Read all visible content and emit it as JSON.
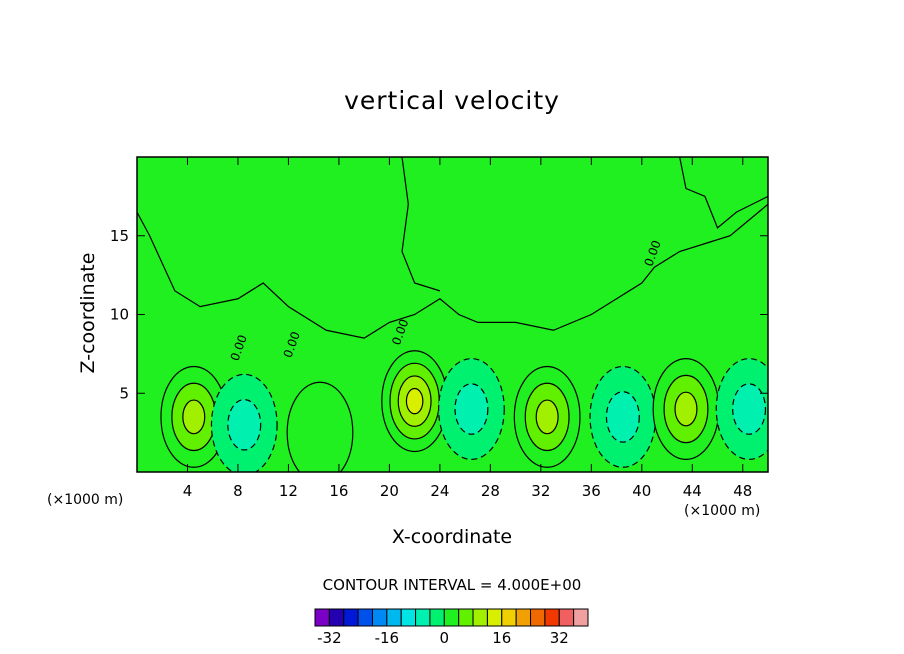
{
  "chart_data": {
    "type": "heatmap",
    "title": "vertical velocity",
    "xlabel": "X-coordinate",
    "ylabel": "Z-coordinate",
    "x_unit_label": "(×1000 m)",
    "xlim": [
      0,
      50
    ],
    "ylim": [
      0,
      20
    ],
    "x_ticks": [
      "4",
      "8",
      "12",
      "16",
      "20",
      "24",
      "28",
      "32",
      "36",
      "40",
      "44",
      "48"
    ],
    "y_ticks": [
      "5",
      "10",
      "15"
    ],
    "contour_interval_text": "CONTOUR INTERVAL = 4.000E+00",
    "contour_interval": 4,
    "zero_contour_labels": [
      "0.00",
      "0.00",
      "0.00",
      "0.00"
    ],
    "colorbar": {
      "levels": [
        -36,
        -32,
        -28,
        -24,
        -20,
        -16,
        -12,
        -8,
        -4,
        0,
        4,
        8,
        12,
        16,
        20,
        24,
        28,
        32,
        36
      ],
      "tick_labels": [
        "-32",
        "-16",
        "0",
        "16",
        "32"
      ],
      "colors": [
        "#7a00c8",
        "#2400b0",
        "#0018d8",
        "#0050ec",
        "#0088f4",
        "#00b8f0",
        "#00e4e4",
        "#00f0b0",
        "#00f070",
        "#20f020",
        "#60f000",
        "#a0f000",
        "#d8f000",
        "#f0d000",
        "#f0a000",
        "#f06800",
        "#f03800",
        "#f06060",
        "#f0a0a0"
      ]
    },
    "features": [
      {
        "kind": "updraft",
        "x": 4.5,
        "z": 3.5,
        "max": 12
      },
      {
        "kind": "downdraft",
        "x": 8.5,
        "z": 3.0,
        "min": -8
      },
      {
        "kind": "updraft",
        "x": 14.5,
        "z": 2.5,
        "max": 4
      },
      {
        "kind": "updraft",
        "x": 22.0,
        "z": 4.5,
        "max": 16
      },
      {
        "kind": "downdraft",
        "x": 26.5,
        "z": 4.0,
        "min": -8
      },
      {
        "kind": "updraft",
        "x": 32.5,
        "z": 3.5,
        "max": 12
      },
      {
        "kind": "downdraft",
        "x": 38.5,
        "z": 3.5,
        "min": -8
      },
      {
        "kind": "updraft",
        "x": 43.5,
        "z": 4.0,
        "max": 12
      },
      {
        "kind": "downdraft",
        "x": 48.5,
        "z": 4.0,
        "min": -8
      }
    ]
  }
}
